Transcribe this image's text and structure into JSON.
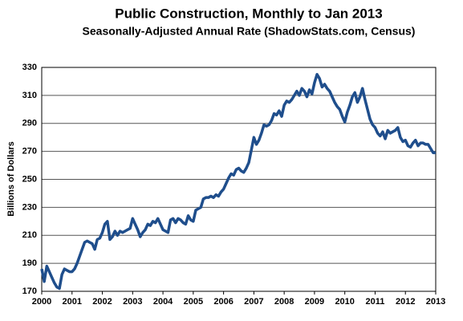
{
  "chart_data": {
    "type": "line",
    "title": "Public Construction, Monthly to Jan 2013",
    "subtitle": "Seasonally-Adjusted Annual Rate (ShadowStats.com, Census)",
    "y_label": "Billions of Dollars",
    "xlim": [
      2000,
      2013
    ],
    "xticks": [
      2000,
      2001,
      2002,
      2003,
      2004,
      2005,
      2006,
      2007,
      2008,
      2009,
      2010,
      2011,
      2012,
      2013
    ],
    "ylim": [
      170,
      330
    ],
    "yticks": [
      170,
      190,
      210,
      230,
      250,
      270,
      290,
      310,
      330
    ],
    "grid": true,
    "x": [
      2000,
      2000.083,
      2000.167,
      2000.25,
      2000.333,
      2000.417,
      2000.5,
      2000.583,
      2000.667,
      2000.75,
      2000.833,
      2000.917,
      2001,
      2001.083,
      2001.167,
      2001.25,
      2001.333,
      2001.417,
      2001.5,
      2001.583,
      2001.667,
      2001.75,
      2001.833,
      2001.917,
      2002,
      2002.083,
      2002.167,
      2002.25,
      2002.333,
      2002.417,
      2002.5,
      2002.583,
      2002.667,
      2002.75,
      2002.833,
      2002.917,
      2003,
      2003.083,
      2003.167,
      2003.25,
      2003.333,
      2003.417,
      2003.5,
      2003.583,
      2003.667,
      2003.75,
      2003.833,
      2003.917,
      2004,
      2004.083,
      2004.167,
      2004.25,
      2004.333,
      2004.417,
      2004.5,
      2004.583,
      2004.667,
      2004.75,
      2004.833,
      2004.917,
      2005,
      2005.083,
      2005.167,
      2005.25,
      2005.333,
      2005.417,
      2005.5,
      2005.583,
      2005.667,
      2005.75,
      2005.833,
      2005.917,
      2006,
      2006.083,
      2006.167,
      2006.25,
      2006.333,
      2006.417,
      2006.5,
      2006.583,
      2006.667,
      2006.75,
      2006.833,
      2006.917,
      2007,
      2007.083,
      2007.167,
      2007.25,
      2007.333,
      2007.417,
      2007.5,
      2007.583,
      2007.667,
      2007.75,
      2007.833,
      2007.917,
      2008,
      2008.083,
      2008.167,
      2008.25,
      2008.333,
      2008.417,
      2008.5,
      2008.583,
      2008.667,
      2008.75,
      2008.833,
      2008.917,
      2009,
      2009.083,
      2009.167,
      2009.25,
      2009.333,
      2009.417,
      2009.5,
      2009.583,
      2009.667,
      2009.75,
      2009.833,
      2009.917,
      2010,
      2010.083,
      2010.167,
      2010.25,
      2010.333,
      2010.417,
      2010.5,
      2010.583,
      2010.667,
      2010.75,
      2010.833,
      2010.917,
      2011,
      2011.083,
      2011.167,
      2011.25,
      2011.333,
      2011.417,
      2011.5,
      2011.583,
      2011.667,
      2011.75,
      2011.833,
      2011.917,
      2012,
      2012.083,
      2012.167,
      2012.25,
      2012.333,
      2012.417,
      2012.5,
      2012.583,
      2012.667,
      2012.75,
      2012.833,
      2012.917,
      2013
    ],
    "series": [
      {
        "color": "#1f4e8c",
        "values": [
          186,
          177,
          188,
          184,
          180,
          176,
          173,
          172,
          182,
          186,
          185,
          184,
          184,
          186,
          190,
          195,
          200,
          205,
          206,
          205,
          204,
          200,
          207,
          208,
          212,
          218,
          220,
          207,
          209,
          213,
          210,
          213,
          212,
          213,
          214,
          215,
          222,
          218,
          214,
          209,
          212,
          214,
          218,
          217,
          220,
          219,
          222,
          218,
          214,
          213,
          212,
          221,
          222,
          219,
          222,
          221,
          219,
          218,
          224,
          221,
          220,
          228,
          229,
          230,
          236,
          237,
          237,
          238,
          237,
          239,
          238,
          241,
          243,
          247,
          251,
          254,
          253,
          257,
          258,
          256,
          255,
          258,
          262,
          271,
          280,
          275,
          278,
          283,
          289,
          288,
          289,
          292,
          297,
          296,
          299,
          295,
          303,
          306,
          305,
          307,
          310,
          313,
          310,
          315,
          313,
          309,
          314,
          311,
          319,
          325,
          322,
          316,
          318,
          315,
          313,
          309,
          305,
          302,
          300,
          295,
          291,
          298,
          303,
          309,
          312,
          305,
          309,
          315,
          307,
          300,
          293,
          289,
          287,
          283,
          281,
          284,
          279,
          285,
          283,
          284,
          285,
          287,
          280,
          277,
          278,
          274,
          273,
          276,
          278,
          274,
          276,
          276,
          275,
          275,
          272,
          269,
          269
        ]
      }
    ]
  }
}
